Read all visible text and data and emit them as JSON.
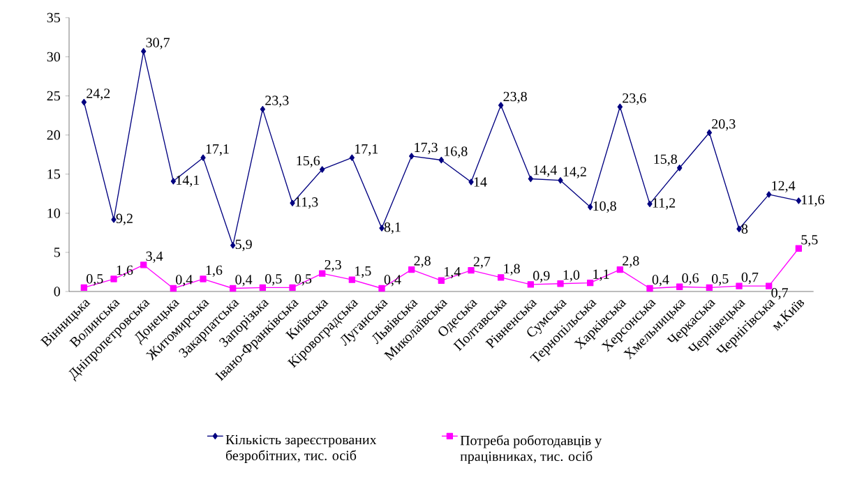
{
  "chart_data": {
    "type": "line",
    "categories": [
      "Вінницька",
      "Волинська",
      "Дніпропетровська",
      "Донецька",
      "Житомирська",
      "Закарпатська",
      "Запорізька",
      "Івано-Франківська",
      "Київська",
      "Кіровоградська",
      "Луганська",
      "Львівська",
      "Миколаївська",
      "Одеська",
      "Полтавська",
      "Рівненська",
      "Сумська",
      "Тернопільська",
      "Харківська",
      "Херсонська",
      "Хмельницька",
      "Черкаська",
      "Чернівецька",
      "Чернігівська",
      "м.Київ"
    ],
    "series": [
      {
        "name": "Кількість зареєстрованих безробітних, тис. осіб",
        "color": "#000080",
        "marker": "diamond",
        "values": [
          24.2,
          9.2,
          30.7,
          14.1,
          17.1,
          5.9,
          23.3,
          11.3,
          15.6,
          17.1,
          8.1,
          17.3,
          16.8,
          14,
          23.8,
          14.4,
          14.2,
          10.8,
          23.6,
          11.2,
          15.8,
          20.3,
          8,
          12.4,
          11.6
        ],
        "value_labels": [
          "24,2",
          "9,2",
          "30,7",
          "14,1",
          "17,1",
          "5,9",
          "23,3",
          "11,3",
          "15,6",
          "17,1",
          "8,1",
          "17,3",
          "16,8",
          "14",
          "23,8",
          "14,4",
          "14,2",
          "10,8",
          "23,6",
          "11,2",
          "15,8",
          "20,3",
          "8",
          "12,4",
          "11,6"
        ]
      },
      {
        "name": "Потреба роботодавців у працівниках, тис. осіб",
        "color": "#ff00ff",
        "marker": "square",
        "values": [
          0.5,
          1.6,
          3.4,
          0.4,
          1.6,
          0.4,
          0.5,
          0.5,
          2.3,
          1.5,
          0.4,
          2.8,
          1.4,
          2.7,
          1.8,
          0.9,
          1.0,
          1.1,
          2.8,
          0.4,
          0.6,
          0.5,
          0.7,
          0.7,
          5.5
        ],
        "value_labels": [
          "0,5",
          "1,6",
          "3,4",
          "0,4",
          "1,6",
          "0,4",
          "0,5",
          "0,5",
          "2,3",
          "1,5",
          "0,4",
          "2,8",
          "1,4",
          "2,7",
          "1,8",
          "0,9",
          "1,0",
          "1,1",
          "2,8",
          "0,4",
          "0,6",
          "0,5",
          "0,7",
          "0,7",
          "5,5"
        ]
      }
    ],
    "ylim": [
      0,
      35
    ],
    "yticks": [
      0,
      5,
      10,
      15,
      20,
      25,
      30,
      35
    ],
    "grid": false,
    "legend": "bottom"
  }
}
